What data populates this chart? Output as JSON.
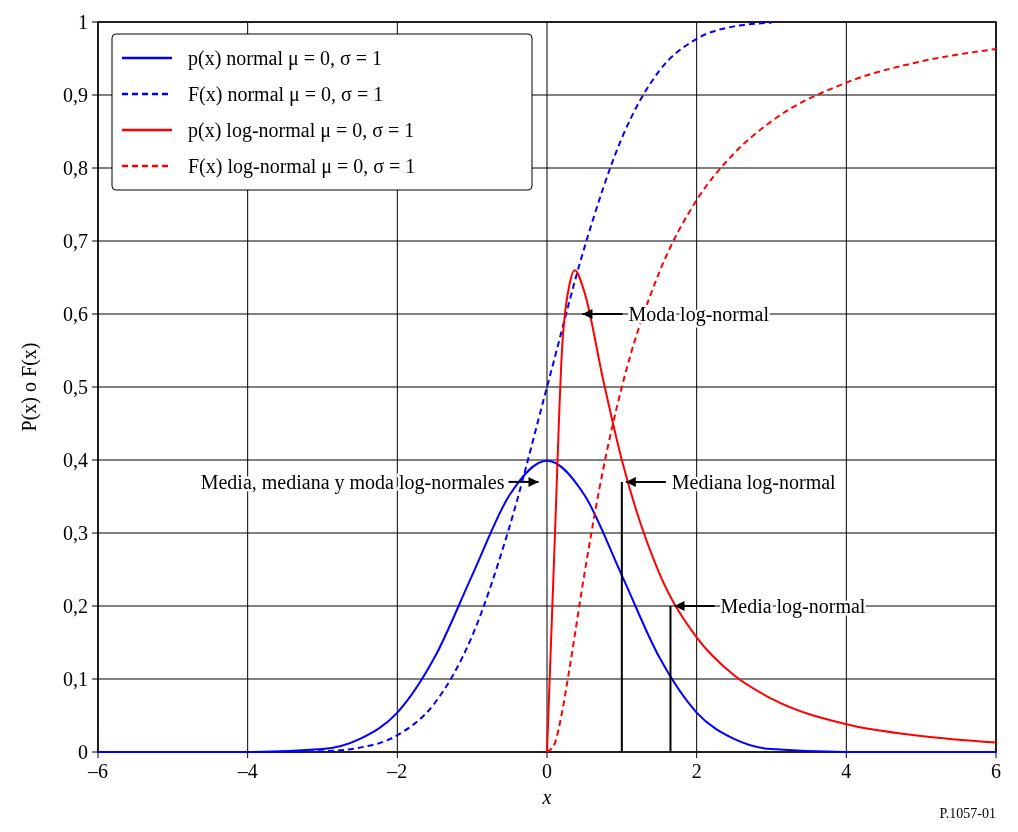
{
  "chart_data": {
    "type": "line",
    "xlabel": "x",
    "ylabel": "P(x) o F(x)",
    "xlim": [
      -6,
      6
    ],
    "xticks": [
      {
        "value": -6,
        "label": "–6"
      },
      {
        "value": -4,
        "label": "–4"
      },
      {
        "value": -2,
        "label": "–2"
      },
      0,
      2,
      4,
      6
    ],
    "ylim": [
      0,
      1
    ],
    "yticks": [
      0,
      {
        "value": 0.1,
        "label": "0,1"
      },
      {
        "value": 0.2,
        "label": "0,2"
      },
      {
        "value": 0.3,
        "label": "0,3"
      },
      {
        "value": 0.4,
        "label": "0,4"
      },
      {
        "value": 0.5,
        "label": "0,5"
      },
      {
        "value": 0.6,
        "label": "0,6"
      },
      {
        "value": 0.7,
        "label": "0,7"
      },
      {
        "value": 0.8,
        "label": "0,8"
      },
      {
        "value": 0.9,
        "label": "0,9"
      },
      1
    ],
    "grid": true,
    "legend": "top left",
    "series": [
      {
        "name": "p(x) normal μ = 0, σ = 1",
        "color": "#0000ff",
        "line_style": "solid",
        "x": [
          -6,
          -4,
          -3,
          -2.5,
          -2,
          -1.5,
          -1,
          -0.5,
          0,
          0.5,
          1,
          1.5,
          2,
          2.5,
          3,
          4,
          6
        ],
        "values": [
          0,
          0,
          0.004,
          0.018,
          0.054,
          0.13,
          0.242,
          0.352,
          0.399,
          0.352,
          0.242,
          0.13,
          0.054,
          0.018,
          0.004,
          0,
          0
        ]
      },
      {
        "name": "F(x) normal μ = 0, σ = 1",
        "color": "#0000ff",
        "line_style": "dashed",
        "x": [
          -6,
          -4,
          -3,
          -2.5,
          -2,
          -1.5,
          -1,
          -0.5,
          0,
          0.5,
          1,
          1.5,
          2,
          2.5,
          3
        ],
        "values": [
          0,
          0,
          0.001,
          0.006,
          0.023,
          0.067,
          0.159,
          0.309,
          0.5,
          0.691,
          0.841,
          0.933,
          0.977,
          0.994,
          0.999
        ]
      },
      {
        "name": "p(x) log-normal μ = 0, σ = 1",
        "color": "#ff0000",
        "line_style": "solid",
        "x": [
          0,
          0.1,
          0.2,
          0.3,
          0.37,
          0.5,
          0.75,
          1,
          1.5,
          2,
          2.5,
          3,
          4,
          5,
          6
        ],
        "values": [
          0,
          0.28,
          0.55,
          0.64,
          0.66,
          0.63,
          0.51,
          0.4,
          0.245,
          0.157,
          0.105,
          0.073,
          0.038,
          0.022,
          0.013
        ]
      },
      {
        "name": "F(x) log-normal μ = 0, σ = 1",
        "color": "#ff0000",
        "line_style": "dashed",
        "x": [
          0,
          0.1,
          0.2,
          0.3,
          0.5,
          0.75,
          1,
          1.5,
          2,
          2.5,
          3,
          4,
          5,
          6
        ],
        "values": [
          0,
          0.011,
          0.054,
          0.114,
          0.244,
          0.387,
          0.5,
          0.657,
          0.756,
          0.82,
          0.864,
          0.917,
          0.946,
          0.963
        ]
      }
    ],
    "annotations": [
      "Moda log-normal",
      {
        "text": "Mediana log-normal",
        "x": 1,
        "y": 0.37
      },
      {
        "text": "Media log-normal",
        "x": 1.65,
        "y": 0.2
      },
      "Media, mediana y moda log-normales",
      "P.1057-01"
    ],
    "ref_lines": [
      {
        "axis": "x",
        "value": 1,
        "color": "#000000"
      },
      {
        "axis": "x",
        "value": 1.65,
        "color": "#000000"
      }
    ]
  }
}
